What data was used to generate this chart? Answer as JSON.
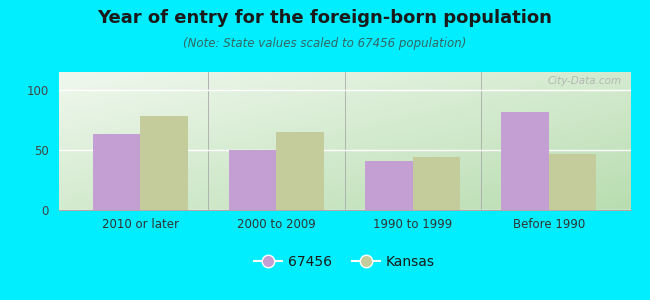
{
  "title": "Year of entry for the foreign-born population",
  "subtitle": "(Note: State values scaled to 67456 population)",
  "categories": [
    "2010 or later",
    "2000 to 2009",
    "1990 to 1999",
    "Before 1990"
  ],
  "values_67456": [
    63,
    50,
    41,
    82
  ],
  "values_kansas": [
    78,
    65,
    44,
    47
  ],
  "bar_color_67456": "#c49fd4",
  "bar_color_kansas": "#c5cc9b",
  "background_outer": "#00eeff",
  "ylabel_ticks": [
    0,
    50,
    100
  ],
  "ylim": [
    0,
    115
  ],
  "legend_label_67456": "67456",
  "legend_label_kansas": "Kansas",
  "title_fontsize": 13,
  "subtitle_fontsize": 8.5,
  "tick_fontsize": 8.5,
  "legend_fontsize": 10,
  "bar_width": 0.35,
  "watermark": "City-Data.com",
  "grad_bottom_left": "#b8ddb0",
  "grad_top_right": "#f5fbf5"
}
